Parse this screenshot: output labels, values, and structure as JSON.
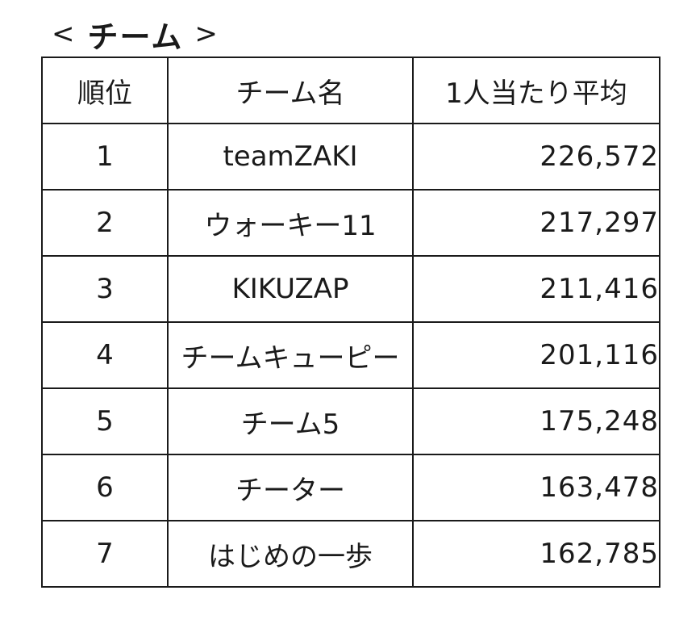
{
  "heading": {
    "open": "<",
    "title": "チーム",
    "close": ">"
  },
  "table": {
    "headers": [
      "順位",
      "チーム名",
      "1人当たり平均"
    ],
    "rows": [
      {
        "rank": "1",
        "team": "teamZAKI",
        "average": "226,572"
      },
      {
        "rank": "2",
        "team": "ウォーキー11",
        "average": "217,297"
      },
      {
        "rank": "3",
        "team": "KIKUZAP",
        "average": "211,416"
      },
      {
        "rank": "4",
        "team": "チームキューピー",
        "average": "201,116"
      },
      {
        "rank": "5",
        "team": "チーム5",
        "average": "175,248"
      },
      {
        "rank": "6",
        "team": "チーター",
        "average": "163,478"
      },
      {
        "rank": "7",
        "team": "はじめの一歩",
        "average": "162,785"
      }
    ]
  }
}
